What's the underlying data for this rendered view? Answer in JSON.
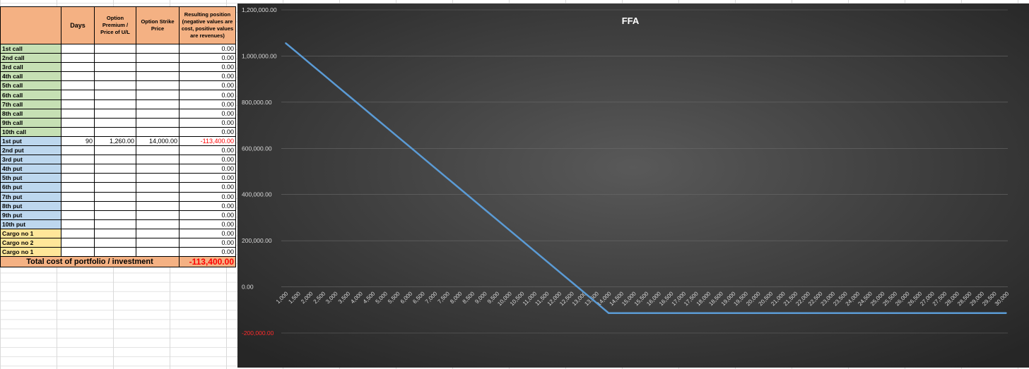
{
  "sheet": {
    "headers": {
      "days": "Days",
      "premium": "Option Premium / Price of U/L",
      "strike": "Option Strike Price",
      "result": "Resulting position (negative values are cost, positive values are revenues)"
    },
    "rows": [
      {
        "label": "1st call",
        "kind": "call",
        "days": "",
        "premium": "",
        "strike": "",
        "result": "0.00"
      },
      {
        "label": "2nd call",
        "kind": "call",
        "days": "",
        "premium": "",
        "strike": "",
        "result": "0.00"
      },
      {
        "label": "3rd call",
        "kind": "call",
        "days": "",
        "premium": "",
        "strike": "",
        "result": "0.00"
      },
      {
        "label": "4th call",
        "kind": "call",
        "days": "",
        "premium": "",
        "strike": "",
        "result": "0.00"
      },
      {
        "label": "5th call",
        "kind": "call",
        "days": "",
        "premium": "",
        "strike": "",
        "result": "0.00"
      },
      {
        "label": "6th call",
        "kind": "call",
        "days": "",
        "premium": "",
        "strike": "",
        "result": "0.00"
      },
      {
        "label": "7th call",
        "kind": "call",
        "days": "",
        "premium": "",
        "strike": "",
        "result": "0.00"
      },
      {
        "label": "8th call",
        "kind": "call",
        "days": "",
        "premium": "",
        "strike": "",
        "result": "0.00"
      },
      {
        "label": "9th call",
        "kind": "call",
        "days": "",
        "premium": "",
        "strike": "",
        "result": "0.00"
      },
      {
        "label": "10th call",
        "kind": "call",
        "days": "",
        "premium": "",
        "strike": "",
        "result": "0.00"
      },
      {
        "label": "1st put",
        "kind": "put",
        "days": "90",
        "premium": "1,260.00",
        "strike": "14,000.00",
        "result": "-113,400.00"
      },
      {
        "label": "2nd put",
        "kind": "put",
        "days": "",
        "premium": "",
        "strike": "",
        "result": "0.00"
      },
      {
        "label": "3rd put",
        "kind": "put",
        "days": "",
        "premium": "",
        "strike": "",
        "result": "0.00"
      },
      {
        "label": "4th put",
        "kind": "put",
        "days": "",
        "premium": "",
        "strike": "",
        "result": "0.00"
      },
      {
        "label": "5th put",
        "kind": "put",
        "days": "",
        "premium": "",
        "strike": "",
        "result": "0.00"
      },
      {
        "label": "6th put",
        "kind": "put",
        "days": "",
        "premium": "",
        "strike": "",
        "result": "0.00"
      },
      {
        "label": "7th put",
        "kind": "put",
        "days": "",
        "premium": "",
        "strike": "",
        "result": "0.00"
      },
      {
        "label": "8th put",
        "kind": "put",
        "days": "",
        "premium": "",
        "strike": "",
        "result": "0.00"
      },
      {
        "label": "9th put",
        "kind": "put",
        "days": "",
        "premium": "",
        "strike": "",
        "result": "0.00"
      },
      {
        "label": "10th put",
        "kind": "put",
        "days": "",
        "premium": "",
        "strike": "",
        "result": "0.00"
      },
      {
        "label": "Cargo no 1",
        "kind": "cargo",
        "days": "",
        "premium": "",
        "strike": "",
        "result": "0.00"
      },
      {
        "label": "Cargo no 2",
        "kind": "cargo",
        "days": "",
        "premium": "",
        "strike": "",
        "result": "0.00"
      },
      {
        "label": "Cargo no 1",
        "kind": "cargo",
        "days": "",
        "premium": "",
        "strike": "",
        "result": "0.00"
      }
    ],
    "total_label": "Total cost of portfolio / investment",
    "total_value": "-113,400.00"
  },
  "colors": {
    "header": "#f4b183",
    "call": "#c6e0b4",
    "put": "#bdd7ee",
    "cargo": "#ffe699",
    "negative": "#ff0000",
    "line": "#5b9bd5",
    "chart_bg": "#3a3a3a"
  },
  "chart_data": {
    "type": "line",
    "title": "FFA",
    "x": [
      1000,
      1500,
      2000,
      2500,
      3000,
      3500,
      4000,
      4500,
      5000,
      5500,
      6000,
      6500,
      7000,
      7500,
      8000,
      8500,
      9000,
      9500,
      10000,
      10500,
      11000,
      11500,
      12000,
      12500,
      13000,
      13500,
      14000,
      14500,
      15000,
      15500,
      16000,
      16500,
      17000,
      17500,
      18000,
      18500,
      19000,
      19500,
      20000,
      20500,
      21000,
      21500,
      22000,
      22500,
      23000,
      23500,
      24000,
      24500,
      25000,
      25500,
      26000,
      26500,
      27000,
      27500,
      28000,
      28500,
      29000,
      29500,
      30000
    ],
    "x_tick_labels": [
      "1,000",
      "1,500",
      "2,000",
      "2,500",
      "3,000",
      "3,500",
      "4,000",
      "4,500",
      "5,000",
      "5,500",
      "6,000",
      "6,500",
      "7,000",
      "7,500",
      "8,000",
      "8,500",
      "9,000",
      "9,500",
      "10,000",
      "10,500",
      "11,000",
      "11,500",
      "12,000",
      "12,500",
      "13,000",
      "13,500",
      "14,000",
      "14,500",
      "15,000",
      "15,500",
      "16,000",
      "16,500",
      "17,000",
      "17,500",
      "18,000",
      "18,500",
      "19,000",
      "19,500",
      "20,000",
      "20,500",
      "21,000",
      "21,500",
      "22,000",
      "22,500",
      "23,000",
      "23,500",
      "24,000",
      "24,500",
      "25,000",
      "25,500",
      "26,000",
      "26,500",
      "27,000",
      "27,500",
      "28,000",
      "28,500",
      "29,000",
      "29,500",
      "30,000"
    ],
    "series": [
      {
        "values": [
          1056600,
          1011600,
          966600,
          921600,
          876600,
          831600,
          786600,
          741600,
          696600,
          651600,
          606600,
          561600,
          516600,
          471600,
          426600,
          381600,
          336600,
          291600,
          246600,
          201600,
          156600,
          111600,
          66600,
          21600,
          -23400,
          -68400,
          -113400,
          -113400,
          -113400,
          -113400,
          -113400,
          -113400,
          -113400,
          -113400,
          -113400,
          -113400,
          -113400,
          -113400,
          -113400,
          -113400,
          -113400,
          -113400,
          -113400,
          -113400,
          -113400,
          -113400,
          -113400,
          -113400,
          -113400,
          -113400,
          -113400,
          -113400,
          -113400,
          -113400,
          -113400,
          -113400,
          -113400,
          -113400,
          -113400
        ]
      }
    ],
    "ylim": [
      -200000,
      1200000
    ],
    "y_ticks": [
      1200000,
      1000000,
      800000,
      600000,
      400000,
      200000,
      0,
      -200000
    ],
    "y_tick_labels": [
      "1,200,000.00",
      "1,000,000.00",
      "800,000.00",
      "600,000.00",
      "400,000.00",
      "200,000.00",
      "0.00",
      "-200,000.00"
    ],
    "grid": true,
    "legend": "none"
  }
}
